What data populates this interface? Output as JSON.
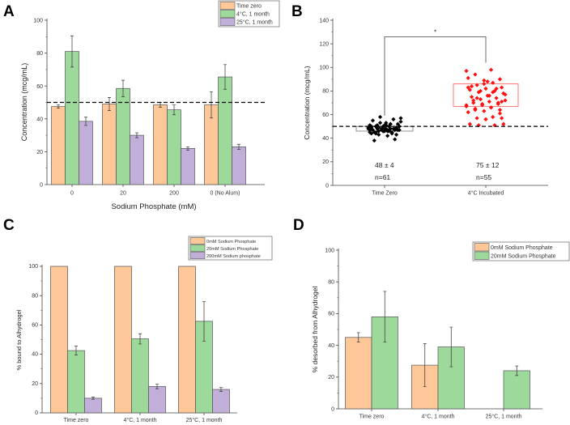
{
  "colors": {
    "orange": "#FDC797",
    "green": "#9CD99B",
    "purple": "#C1AFD9",
    "red": "#FF1010",
    "black": "#000000"
  },
  "chart_data": [
    {
      "panel": "A",
      "type": "bar",
      "title": "",
      "xlabel": "Sodium Phosphate (mM)",
      "ylabel": "Concentration (mcg/mL)",
      "ylim": [
        0,
        100
      ],
      "yticks": [
        0,
        20,
        40,
        60,
        80,
        100
      ],
      "categories": [
        "0",
        "20",
        "200",
        "0 (No Alum)"
      ],
      "reference_line": 50,
      "legend": "top-right",
      "series": [
        {
          "name": "Time zero",
          "color": "orange",
          "values": [
            47.5,
            49,
            48.5,
            48.5
          ],
          "errors": [
            1,
            4,
            1.5,
            8
          ]
        },
        {
          "name": "4°C, 1 month",
          "color": "green",
          "values": [
            81,
            58.5,
            45.5,
            65.5
          ],
          "errors": [
            9.5,
            5,
            3,
            7.5
          ]
        },
        {
          "name": "25°C, 1 month",
          "color": "purple",
          "values": [
            38.5,
            30,
            22,
            23
          ],
          "errors": [
            2.5,
            1.5,
            1,
            1.5
          ]
        }
      ]
    },
    {
      "panel": "B",
      "type": "scatter",
      "ylabel": "Concentration (mcg/mL)",
      "xlabel": "",
      "ylim": [
        0,
        140
      ],
      "yticks": [
        0,
        20,
        40,
        60,
        80,
        100,
        120,
        140
      ],
      "categories": [
        "Time Zero",
        "4°C Incubated"
      ],
      "reference_line": 50,
      "significance": "*",
      "groups": [
        {
          "name": "Time Zero",
          "color": "black",
          "box": [
            46,
            50
          ],
          "summary": "48 ± 4",
          "n_label": "n=61",
          "values": [
            48,
            47,
            50,
            49,
            46,
            45,
            52,
            51,
            47,
            48,
            49,
            44,
            43,
            50,
            53,
            55,
            56,
            58,
            57,
            42,
            38,
            39,
            47,
            48,
            46,
            45,
            49,
            50,
            51,
            52,
            48,
            47,
            46,
            44,
            45,
            49,
            50,
            51,
            47,
            48,
            53,
            54,
            46,
            45,
            47,
            48,
            49,
            50,
            44,
            43,
            46,
            47,
            48,
            49,
            52,
            51,
            50,
            45,
            46,
            47,
            48
          ]
        },
        {
          "name": "4°C Incubated",
          "color": "red",
          "box": [
            67,
            86
          ],
          "summary": "75 ± 12",
          "n_label": "n=55",
          "values": [
            97,
            98,
            94,
            90,
            89,
            91,
            87,
            85,
            83,
            82,
            81,
            80,
            79,
            78,
            76,
            75,
            74,
            73,
            72,
            71,
            70,
            69,
            68,
            67,
            66,
            65,
            64,
            63,
            62,
            58,
            57,
            57,
            56,
            52,
            51,
            51,
            52,
            88,
            84,
            82,
            80,
            77,
            76,
            72,
            70,
            69,
            68,
            66,
            64,
            61,
            86,
            83,
            79,
            74,
            71
          ]
        }
      ]
    },
    {
      "panel": "C",
      "type": "bar",
      "xlabel": "",
      "ylabel": "% bound to Alhydrogel",
      "ylim": [
        0,
        100
      ],
      "yticks": [
        0,
        20,
        40,
        60,
        80,
        100
      ],
      "categories": [
        "Time zero",
        "4°C, 1 month",
        "25°C, 1 month"
      ],
      "legend": "top-right",
      "series": [
        {
          "name": "0mM Sodium Phosphate",
          "color": "orange",
          "values": [
            100,
            100,
            100
          ],
          "errors": [
            0,
            0,
            0
          ]
        },
        {
          "name": "20mM Sodium Phosphate",
          "color": "green",
          "values": [
            42.5,
            50.5,
            62.5
          ],
          "errors": [
            3,
            3.5,
            13.5
          ]
        },
        {
          "name": "200mM Sodium phosphate",
          "color": "purple",
          "values": [
            10,
            18,
            16
          ],
          "errors": [
            0.7,
            1.5,
            1.3
          ]
        }
      ]
    },
    {
      "panel": "D",
      "type": "bar",
      "xlabel": "",
      "ylabel": "% desorbed from Alhydrogel",
      "ylim": [
        0,
        100
      ],
      "yticks": [
        0,
        20,
        40,
        60,
        80,
        100
      ],
      "categories": [
        "Time zero",
        "4°C, 1 month",
        "25°C, 1 month"
      ],
      "legend": "top-right",
      "series": [
        {
          "name": "0mM Sodium Phosphate",
          "color": "orange",
          "values": [
            45,
            27.5,
            null
          ],
          "errors": [
            3,
            13.5,
            null
          ]
        },
        {
          "name": "20mM Sodium Phosphate",
          "color": "green",
          "values": [
            58,
            39,
            24
          ],
          "errors": [
            16,
            12.5,
            3
          ]
        }
      ]
    }
  ]
}
